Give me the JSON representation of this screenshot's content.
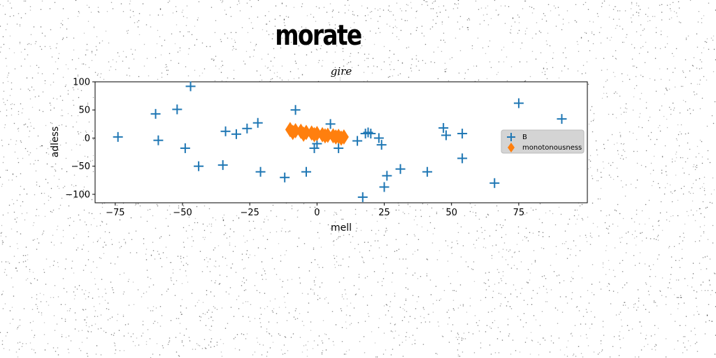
{
  "figure": {
    "title": "morate"
  },
  "colors": {
    "series_b": "#1f77b4",
    "series_m": "#ff7f0e",
    "legend_bg": "#d4d4d4"
  },
  "chart_data": {
    "type": "scatter",
    "title": "gire",
    "xlabel": "mell",
    "ylabel": "adless",
    "xlim": [
      -82,
      200
    ],
    "ylim": [
      -115,
      100
    ],
    "xticks": [
      -75,
      -50,
      -25,
      0,
      25,
      50,
      75
    ],
    "yticks": [
      100,
      50,
      0,
      -50,
      -100
    ],
    "grid": false,
    "legend": {
      "position": "center-right"
    },
    "series": [
      {
        "name": "B",
        "marker": "plus",
        "x": [
          -74,
          -60,
          -59,
          -52,
          -49,
          -47,
          -44,
          -35,
          -34,
          -30,
          -26,
          -22,
          -21,
          -12,
          -8,
          -4,
          -1,
          0,
          5,
          8,
          15,
          17,
          18,
          19,
          20,
          23,
          24,
          25,
          26,
          31,
          41,
          47,
          48,
          54,
          54,
          66,
          75,
          91
        ],
        "y": [
          2,
          43,
          -4,
          51,
          -18,
          92,
          -50,
          -48,
          12,
          7,
          17,
          27,
          -60,
          -70,
          50,
          -60,
          -18,
          -10,
          25,
          -18,
          -5,
          -105,
          8,
          10,
          8,
          0,
          -12,
          -87,
          -67,
          -55,
          -60,
          18,
          5,
          -36,
          8,
          -80,
          62,
          34
        ]
      },
      {
        "name": "monotonousness",
        "marker": "diamond",
        "x": [
          -10,
          -8,
          -6,
          -4,
          -2,
          0,
          2,
          4,
          6,
          8,
          10,
          -9,
          -5,
          -1,
          3,
          7,
          9
        ],
        "y": [
          15,
          13,
          12,
          10,
          9,
          8,
          6,
          5,
          4,
          3,
          2,
          10,
          7,
          6,
          4,
          2,
          0
        ]
      }
    ]
  }
}
